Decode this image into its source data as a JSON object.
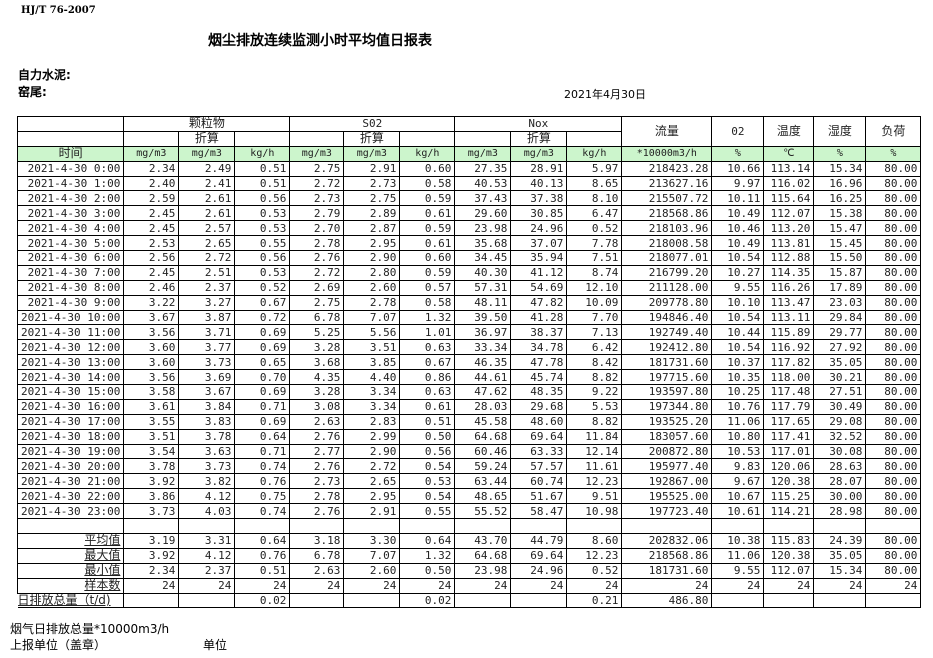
{
  "header": {
    "standard": "HJ/T  76-2007",
    "title": "烟尘排放连续监测小时平均值日报表",
    "company": "自力水泥:",
    "kiln": "窑尾:",
    "date": "2021年4月30日"
  },
  "table": {
    "groups": {
      "particulate": "颗粒物",
      "so2": "S02",
      "nox": "Nox",
      "flow": "流量",
      "o2": "02",
      "temp": "温度",
      "humidity": "湿度",
      "load": "负荷"
    },
    "converted": "折算",
    "units": [
      "时间",
      "mg/m3",
      "mg/m3",
      "kg/h",
      "mg/m3",
      "mg/m3",
      "kg/h",
      "mg/m3",
      "mg/m3",
      "kg/h",
      "*10000m3/h",
      "%",
      "℃",
      "%",
      "%"
    ],
    "rows": [
      [
        "2021-4-30 0:00",
        "2.34",
        "2.49",
        "0.51",
        "2.75",
        "2.91",
        "0.60",
        "27.35",
        "28.91",
        "5.97",
        "218423.28",
        "10.66",
        "113.14",
        "15.34",
        "80.00"
      ],
      [
        "2021-4-30 1:00",
        "2.40",
        "2.41",
        "0.51",
        "2.72",
        "2.73",
        "0.58",
        "40.53",
        "40.13",
        "8.65",
        "213627.16",
        "9.97",
        "116.02",
        "16.96",
        "80.00"
      ],
      [
        "2021-4-30 2:00",
        "2.59",
        "2.61",
        "0.56",
        "2.73",
        "2.75",
        "0.59",
        "37.43",
        "37.38",
        "8.10",
        "215507.72",
        "10.11",
        "115.64",
        "16.25",
        "80.00"
      ],
      [
        "2021-4-30 3:00",
        "2.45",
        "2.61",
        "0.53",
        "2.79",
        "2.89",
        "0.61",
        "29.60",
        "30.85",
        "6.47",
        "218568.86",
        "10.49",
        "112.07",
        "15.38",
        "80.00"
      ],
      [
        "2021-4-30 4:00",
        "2.45",
        "2.57",
        "0.53",
        "2.70",
        "2.87",
        "0.59",
        "23.98",
        "24.96",
        "0.52",
        "218103.96",
        "10.46",
        "113.20",
        "15.47",
        "80.00"
      ],
      [
        "2021-4-30 5:00",
        "2.53",
        "2.65",
        "0.55",
        "2.78",
        "2.95",
        "0.61",
        "35.68",
        "37.07",
        "7.78",
        "218008.58",
        "10.49",
        "113.81",
        "15.45",
        "80.00"
      ],
      [
        "2021-4-30 6:00",
        "2.56",
        "2.72",
        "0.56",
        "2.76",
        "2.90",
        "0.60",
        "34.45",
        "35.94",
        "7.51",
        "218077.01",
        "10.54",
        "112.88",
        "15.50",
        "80.00"
      ],
      [
        "2021-4-30 7:00",
        "2.45",
        "2.51",
        "0.53",
        "2.72",
        "2.80",
        "0.59",
        "40.30",
        "41.12",
        "8.74",
        "216799.20",
        "10.27",
        "114.35",
        "15.87",
        "80.00"
      ],
      [
        "2021-4-30 8:00",
        "2.46",
        "2.37",
        "0.52",
        "2.69",
        "2.60",
        "0.57",
        "57.31",
        "54.69",
        "12.10",
        "211128.00",
        "9.55",
        "116.26",
        "17.89",
        "80.00"
      ],
      [
        "2021-4-30 9:00",
        "3.22",
        "3.27",
        "0.67",
        "2.75",
        "2.78",
        "0.58",
        "48.11",
        "47.82",
        "10.09",
        "209778.80",
        "10.10",
        "113.47",
        "23.03",
        "80.00"
      ],
      [
        "2021-4-30 10:00",
        "3.67",
        "3.87",
        "0.72",
        "6.78",
        "7.07",
        "1.32",
        "39.50",
        "41.28",
        "7.70",
        "194846.40",
        "10.54",
        "113.11",
        "29.84",
        "80.00"
      ],
      [
        "2021-4-30 11:00",
        "3.56",
        "3.71",
        "0.69",
        "5.25",
        "5.56",
        "1.01",
        "36.97",
        "38.37",
        "7.13",
        "192749.40",
        "10.44",
        "115.89",
        "29.77",
        "80.00"
      ],
      [
        "2021-4-30 12:00",
        "3.60",
        "3.77",
        "0.69",
        "3.28",
        "3.51",
        "0.63",
        "33.34",
        "34.78",
        "6.42",
        "192412.80",
        "10.54",
        "116.92",
        "27.92",
        "80.00"
      ],
      [
        "2021-4-30 13:00",
        "3.60",
        "3.73",
        "0.65",
        "3.68",
        "3.85",
        "0.67",
        "46.35",
        "47.78",
        "8.42",
        "181731.60",
        "10.37",
        "117.82",
        "35.05",
        "80.00"
      ],
      [
        "2021-4-30 14:00",
        "3.56",
        "3.69",
        "0.70",
        "4.35",
        "4.40",
        "0.86",
        "44.61",
        "45.74",
        "8.82",
        "197715.60",
        "10.35",
        "118.00",
        "30.21",
        "80.00"
      ],
      [
        "2021-4-30 15:00",
        "3.58",
        "3.67",
        "0.69",
        "3.28",
        "3.34",
        "0.63",
        "47.62",
        "48.35",
        "9.22",
        "193597.80",
        "10.25",
        "117.48",
        "27.51",
        "80.00"
      ],
      [
        "2021-4-30 16:00",
        "3.61",
        "3.84",
        "0.71",
        "3.08",
        "3.34",
        "0.61",
        "28.03",
        "29.68",
        "5.53",
        "197344.80",
        "10.76",
        "117.79",
        "30.49",
        "80.00"
      ],
      [
        "2021-4-30 17:00",
        "3.55",
        "3.83",
        "0.69",
        "2.63",
        "2.83",
        "0.51",
        "45.58",
        "48.60",
        "8.82",
        "193525.20",
        "11.06",
        "117.65",
        "29.08",
        "80.00"
      ],
      [
        "2021-4-30 18:00",
        "3.51",
        "3.78",
        "0.64",
        "2.76",
        "2.99",
        "0.50",
        "64.68",
        "69.64",
        "11.84",
        "183057.60",
        "10.80",
        "117.41",
        "32.52",
        "80.00"
      ],
      [
        "2021-4-30 19:00",
        "3.54",
        "3.63",
        "0.71",
        "2.77",
        "2.90",
        "0.56",
        "60.46",
        "63.33",
        "12.14",
        "200872.80",
        "10.53",
        "117.01",
        "30.08",
        "80.00"
      ],
      [
        "2021-4-30 20:00",
        "3.78",
        "3.73",
        "0.74",
        "2.76",
        "2.72",
        "0.54",
        "59.24",
        "57.57",
        "11.61",
        "195977.40",
        "9.83",
        "120.06",
        "28.63",
        "80.00"
      ],
      [
        "2021-4-30 21:00",
        "3.92",
        "3.82",
        "0.76",
        "2.73",
        "2.65",
        "0.53",
        "63.44",
        "60.74",
        "12.23",
        "192867.00",
        "9.67",
        "120.38",
        "28.07",
        "80.00"
      ],
      [
        "2021-4-30 22:00",
        "3.86",
        "4.12",
        "0.75",
        "2.78",
        "2.95",
        "0.54",
        "48.65",
        "51.67",
        "9.51",
        "195525.00",
        "10.67",
        "115.25",
        "30.00",
        "80.00"
      ],
      [
        "2021-4-30 23:00",
        "3.73",
        "4.03",
        "0.74",
        "2.76",
        "2.91",
        "0.55",
        "55.52",
        "58.47",
        "10.98",
        "197723.40",
        "10.61",
        "114.21",
        "28.98",
        "80.00"
      ]
    ],
    "summary": [
      [
        "平均值",
        "3.19",
        "3.31",
        "0.64",
        "3.18",
        "3.30",
        "0.64",
        "43.70",
        "44.79",
        "8.60",
        "202832.06",
        "10.38",
        "115.83",
        "24.39",
        "80.00"
      ],
      [
        "最大值",
        "3.92",
        "4.12",
        "0.76",
        "6.78",
        "7.07",
        "1.32",
        "64.68",
        "69.64",
        "12.23",
        "218568.86",
        "11.06",
        "120.38",
        "35.05",
        "80.00"
      ],
      [
        "最小值",
        "2.34",
        "2.37",
        "0.51",
        "2.63",
        "2.60",
        "0.50",
        "23.98",
        "24.96",
        "0.52",
        "181731.60",
        "9.55",
        "112.07",
        "15.34",
        "80.00"
      ],
      [
        "样本数",
        "24",
        "24",
        "24",
        "24",
        "24",
        "24",
        "24",
        "24",
        "24",
        "24",
        "24",
        "24",
        "24",
        "24"
      ],
      [
        "日排放总量（t/d)",
        "",
        "",
        "0.02",
        "",
        "",
        "0.02",
        "",
        "",
        "0.21",
        "486.80",
        "",
        "",
        "",
        ""
      ]
    ]
  },
  "footer": {
    "flue_gas_total": "烟气日排放总量*10000m3/h",
    "reporting_unit": "上报单位（盖章）",
    "unit": "单位"
  }
}
